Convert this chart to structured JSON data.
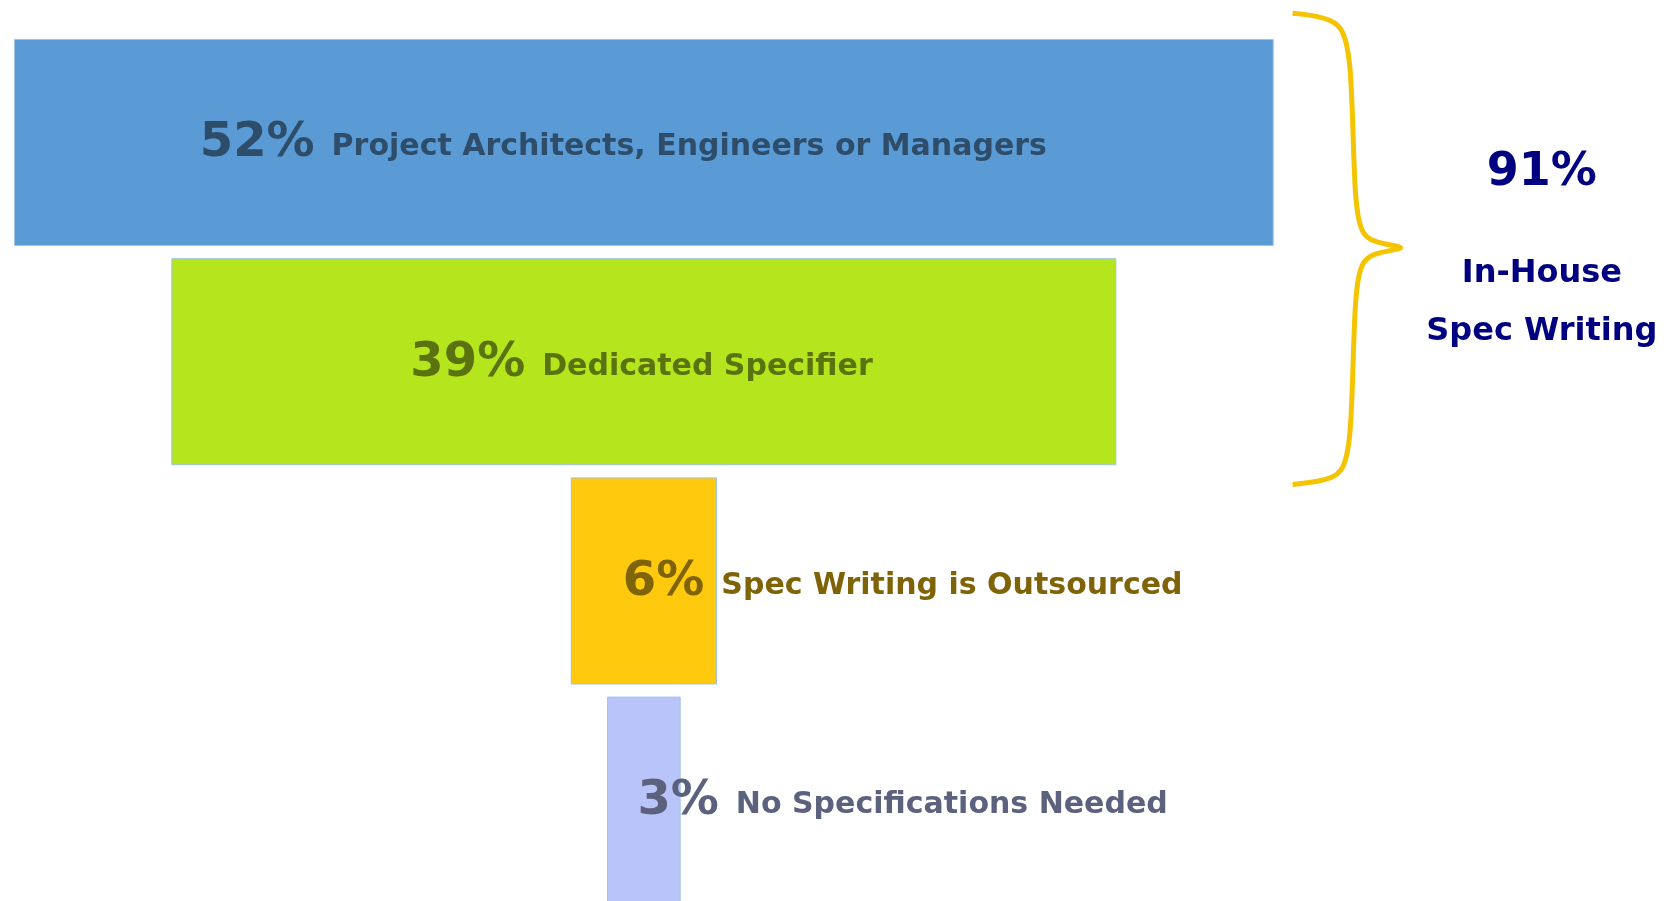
{
  "chart_data": {
    "type": "other",
    "categories": [
      "Project Architects, Engineers or Managers",
      "Dedicated Specifier",
      "Spec Writing is Outsourced",
      "No Specifications Needed"
    ],
    "values": [
      52,
      39,
      6,
      3
    ],
    "value_labels": [
      "52%",
      "39%",
      "6%",
      "3%"
    ],
    "colors": [
      "#5b9bd5",
      "#b5e61d",
      "#ffc90e",
      "#b9c4fa"
    ],
    "annotations": [
      "91%",
      "In-House\nSpec Writing"
    ]
  }
}
